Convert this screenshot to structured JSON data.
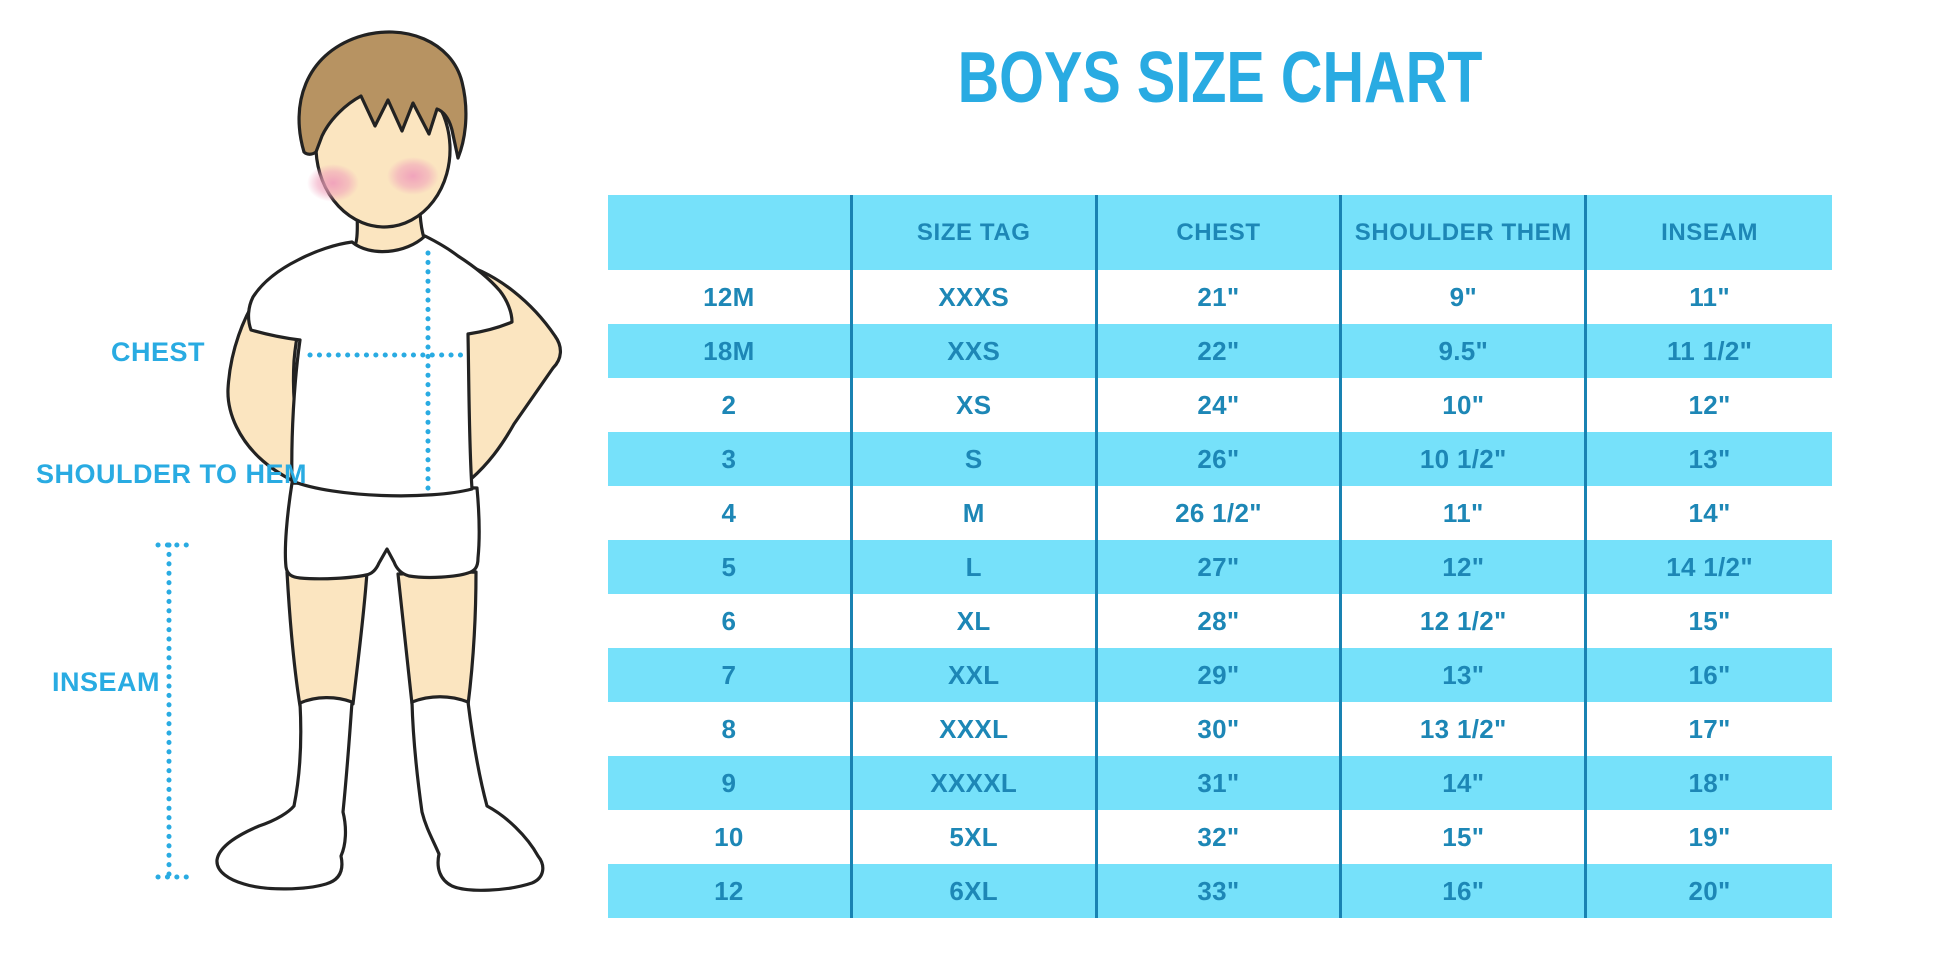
{
  "figure": {
    "labels": {
      "chest": "CHEST",
      "shoulder_to_hem": "SHOULDER TO HEM",
      "inseam": "INSEAM"
    }
  },
  "chart_data": {
    "type": "table",
    "title": "BOYS SIZE CHART",
    "columns": [
      "",
      "SIZE TAG",
      "CHEST",
      "SHOULDER THEM",
      "INSEAM"
    ],
    "rows": [
      [
        "12M",
        "XXXS",
        "21\"",
        "9\"",
        "11\""
      ],
      [
        "18M",
        "XXS",
        "22\"",
        "9.5\"",
        "11 1/2\""
      ],
      [
        "2",
        "XS",
        "24\"",
        "10\"",
        "12\""
      ],
      [
        "3",
        "S",
        "26\"",
        "10 1/2\"",
        "13\""
      ],
      [
        "4",
        "M",
        "26 1/2\"",
        "11\"",
        "14\""
      ],
      [
        "5",
        "L",
        "27\"",
        "12\"",
        "14 1/2\""
      ],
      [
        "6",
        "XL",
        "28\"",
        "12 1/2\"",
        "15\""
      ],
      [
        "7",
        "XXL",
        "29\"",
        "13\"",
        "16\""
      ],
      [
        "8",
        "XXXL",
        "30\"",
        "13 1/2\"",
        "17\""
      ],
      [
        "9",
        "XXXXL",
        "31\"",
        "14\"",
        "18\""
      ],
      [
        "10",
        "5XL",
        "32\"",
        "15\"",
        "19\""
      ],
      [
        "12",
        "6XL",
        "33\"",
        "16\"",
        "20\""
      ]
    ],
    "layout": {
      "header_fill": "light blue",
      "row_stripe": "alternating white and light blue",
      "grid": "vertical column dividers only",
      "legend_position": "none"
    }
  },
  "colors": {
    "accent_blue": "#29ABE2",
    "table_fill_blue": "#76E1FA",
    "table_text_teal": "#1D87B6",
    "table_divider_blue": "#1982B2",
    "skin": "#FBE5C0",
    "hair": "#B79362",
    "blush": "#F0A0BB",
    "outline": "#222222"
  }
}
